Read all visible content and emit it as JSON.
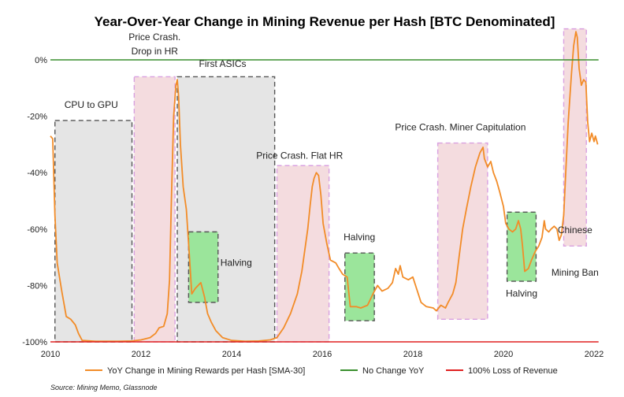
{
  "chart_data": {
    "type": "line",
    "title": "Year-Over-Year Change in Mining Revenue per Hash [BTC Denominated]",
    "xlabel": "",
    "ylabel": "",
    "xlim": [
      2010,
      2022
    ],
    "ylim": [
      -100,
      15
    ],
    "x_ticks": [
      2010,
      2012,
      2014,
      2016,
      2018,
      2020,
      2022
    ],
    "x_tick_labels": [
      "2010",
      "2012",
      "2014",
      "2016",
      "2018",
      "2020",
      "2022"
    ],
    "y_ticks": [
      0,
      -20,
      -40,
      -60,
      -80,
      -100
    ],
    "y_tick_labels": [
      "0%",
      "-20%",
      "-40%",
      "-60%",
      "-80%",
      "-100%"
    ],
    "grid": false,
    "legend_position": "bottom",
    "colors": {
      "yoy": "#F28C28",
      "no_change": "#3A8F2E",
      "loss": "#E02020",
      "grey_box": "#E5E5E5",
      "pink_box": "#F4DCDF",
      "green_box": "#9BE59B"
    },
    "series": [
      {
        "name": "YoY Change in Mining Rewards per Hash [SMA-30]",
        "color": "#F28C28",
        "points": [
          [
            2010.0,
            -27
          ],
          [
            2010.05,
            -28
          ],
          [
            2010.1,
            -55
          ],
          [
            2010.15,
            -72
          ],
          [
            2010.25,
            -82
          ],
          [
            2010.35,
            -91
          ],
          [
            2010.45,
            -92
          ],
          [
            2010.55,
            -94
          ],
          [
            2010.62,
            -97
          ],
          [
            2010.7,
            -99.5
          ],
          [
            2011.0,
            -99.8
          ],
          [
            2011.5,
            -99.8
          ],
          [
            2011.8,
            -99.7
          ],
          [
            2012.0,
            -99.3
          ],
          [
            2012.2,
            -98.5
          ],
          [
            2012.32,
            -97
          ],
          [
            2012.4,
            -95
          ],
          [
            2012.5,
            -94.5
          ],
          [
            2012.58,
            -90
          ],
          [
            2012.63,
            -78
          ],
          [
            2012.67,
            -50
          ],
          [
            2012.72,
            -20
          ],
          [
            2012.77,
            -9
          ],
          [
            2012.8,
            -7
          ],
          [
            2012.83,
            -13
          ],
          [
            2012.87,
            -30
          ],
          [
            2012.93,
            -45
          ],
          [
            2013.0,
            -53
          ],
          [
            2013.07,
            -70
          ],
          [
            2013.12,
            -83
          ],
          [
            2013.2,
            -81
          ],
          [
            2013.32,
            -79
          ],
          [
            2013.4,
            -84
          ],
          [
            2013.47,
            -90
          ],
          [
            2013.55,
            -93
          ],
          [
            2013.65,
            -96
          ],
          [
            2013.8,
            -98.5
          ],
          [
            2014.0,
            -99.5
          ],
          [
            2014.3,
            -99.8
          ],
          [
            2014.6,
            -99.7
          ],
          [
            2014.85,
            -99.3
          ],
          [
            2015.0,
            -98.5
          ],
          [
            2015.15,
            -95
          ],
          [
            2015.3,
            -90
          ],
          [
            2015.45,
            -83
          ],
          [
            2015.55,
            -75
          ],
          [
            2015.62,
            -67
          ],
          [
            2015.68,
            -60
          ],
          [
            2015.73,
            -52
          ],
          [
            2015.78,
            -45
          ],
          [
            2015.82,
            -42
          ],
          [
            2015.87,
            -40
          ],
          [
            2015.92,
            -41
          ],
          [
            2015.97,
            -48
          ],
          [
            2016.02,
            -58
          ],
          [
            2016.1,
            -65
          ],
          [
            2016.18,
            -71
          ],
          [
            2016.3,
            -72
          ],
          [
            2016.37,
            -74
          ],
          [
            2016.45,
            -76
          ],
          [
            2016.55,
            -77
          ],
          [
            2016.62,
            -87.5
          ],
          [
            2016.75,
            -87.5
          ],
          [
            2016.85,
            -88
          ],
          [
            2017.0,
            -87
          ],
          [
            2017.12,
            -83
          ],
          [
            2017.22,
            -80
          ],
          [
            2017.32,
            -82
          ],
          [
            2017.45,
            -81
          ],
          [
            2017.55,
            -79
          ],
          [
            2017.62,
            -74
          ],
          [
            2017.68,
            -76
          ],
          [
            2017.72,
            -73
          ],
          [
            2017.78,
            -77
          ],
          [
            2017.9,
            -78
          ],
          [
            2018.0,
            -77
          ],
          [
            2018.08,
            -81
          ],
          [
            2018.18,
            -86
          ],
          [
            2018.3,
            -87.5
          ],
          [
            2018.45,
            -88
          ],
          [
            2018.52,
            -89
          ],
          [
            2018.62,
            -87
          ],
          [
            2018.72,
            -88
          ],
          [
            2018.78,
            -86
          ],
          [
            2018.88,
            -83
          ],
          [
            2018.95,
            -79
          ],
          [
            2019.02,
            -70
          ],
          [
            2019.1,
            -60
          ],
          [
            2019.18,
            -53
          ],
          [
            2019.28,
            -45
          ],
          [
            2019.38,
            -38
          ],
          [
            2019.48,
            -33
          ],
          [
            2019.55,
            -31
          ],
          [
            2019.58,
            -35
          ],
          [
            2019.65,
            -38
          ],
          [
            2019.72,
            -36
          ],
          [
            2019.78,
            -40
          ],
          [
            2019.85,
            -43
          ],
          [
            2019.92,
            -47
          ],
          [
            2020.0,
            -52
          ],
          [
            2020.05,
            -58
          ],
          [
            2020.12,
            -60
          ],
          [
            2020.2,
            -61
          ],
          [
            2020.27,
            -60
          ],
          [
            2020.33,
            -57
          ],
          [
            2020.38,
            -60
          ],
          [
            2020.42,
            -66
          ],
          [
            2020.47,
            -75
          ],
          [
            2020.55,
            -74
          ],
          [
            2020.62,
            -71
          ],
          [
            2020.7,
            -68
          ],
          [
            2020.78,
            -66
          ],
          [
            2020.85,
            -63
          ],
          [
            2020.9,
            -57
          ],
          [
            2020.93,
            -60
          ],
          [
            2021.0,
            -61
          ],
          [
            2021.05,
            -60
          ],
          [
            2021.12,
            -59
          ],
          [
            2021.18,
            -60
          ],
          [
            2021.23,
            -64
          ],
          [
            2021.28,
            -62
          ],
          [
            2021.33,
            -55
          ],
          [
            2021.38,
            -38
          ],
          [
            2021.43,
            -22
          ],
          [
            2021.5,
            -5
          ],
          [
            2021.55,
            5
          ],
          [
            2021.6,
            10
          ],
          [
            2021.63,
            8
          ],
          [
            2021.67,
            -3
          ],
          [
            2021.72,
            -9
          ],
          [
            2021.77,
            -7
          ],
          [
            2021.82,
            -8
          ],
          [
            2021.86,
            -22
          ],
          [
            2021.9,
            -29
          ],
          [
            2021.95,
            -26
          ],
          [
            2022.0,
            -29
          ],
          [
            2022.03,
            -27
          ],
          [
            2022.08,
            -30
          ]
        ]
      },
      {
        "name": "No Change YoY",
        "color": "#3A8F2E",
        "points": [
          [
            2010,
            0
          ],
          [
            2022.1,
            0
          ]
        ]
      },
      {
        "name": "100% Loss of Revenue",
        "color": "#E02020",
        "points": [
          [
            2010,
            -100
          ],
          [
            2022.1,
            -100
          ]
        ]
      }
    ],
    "annotations": [
      {
        "kind": "grey",
        "x0": 2010.1,
        "x1": 2011.8,
        "y0": -100,
        "y1": -21.5,
        "labels": [
          "CPU to GPU"
        ],
        "label_x": 2010.9,
        "label_y": -17
      },
      {
        "kind": "pink",
        "x0": 2011.85,
        "x1": 2012.75,
        "y0": -100,
        "y1": -6,
        "labels": [
          "Price Crash.",
          "Drop in HR"
        ],
        "label_x": 2012.3,
        "label_y": 2
      },
      {
        "kind": "grey",
        "x0": 2012.8,
        "x1": 2014.95,
        "y0": -100,
        "y1": -6,
        "labels": [
          "First ASICs"
        ],
        "label_x": 2013.8,
        "label_y": -2.5
      },
      {
        "kind": "green",
        "x0": 2013.05,
        "x1": 2013.7,
        "y0": -86,
        "y1": -61,
        "labels": [
          "Halving"
        ],
        "label_x": 2014.1,
        "label_y": -73
      },
      {
        "kind": "pink",
        "x0": 2015.0,
        "x1": 2016.15,
        "y0": -100,
        "y1": -37.5,
        "labels": [
          "Price Crash. Flat HR"
        ],
        "label_x": 2015.5,
        "label_y": -35
      },
      {
        "kind": "green",
        "x0": 2016.5,
        "x1": 2017.15,
        "y0": -92.5,
        "y1": -68.5,
        "labels": [
          "Halving"
        ],
        "label_x": 2016.82,
        "label_y": -64
      },
      {
        "kind": "pink",
        "x0": 2018.55,
        "x1": 2019.65,
        "y0": -92,
        "y1": -29.5,
        "labels": [
          "Price Crash. Miner Capitulation"
        ],
        "label_x": 2019.05,
        "label_y": -25
      },
      {
        "kind": "green",
        "x0": 2020.08,
        "x1": 2020.72,
        "y0": -78.5,
        "y1": -54,
        "labels": [
          "Halving"
        ],
        "label_x": 2020.4,
        "label_y": -84
      },
      {
        "kind": "pink",
        "x0": 2021.33,
        "x1": 2021.83,
        "y0": -66,
        "y1": 11,
        "labels": [
          "Chinese",
          "Mining Ban"
        ],
        "label_x": 2021.58,
        "label_y": -71.5
      }
    ],
    "source": "Source: Mining Memo, Glassnode"
  }
}
